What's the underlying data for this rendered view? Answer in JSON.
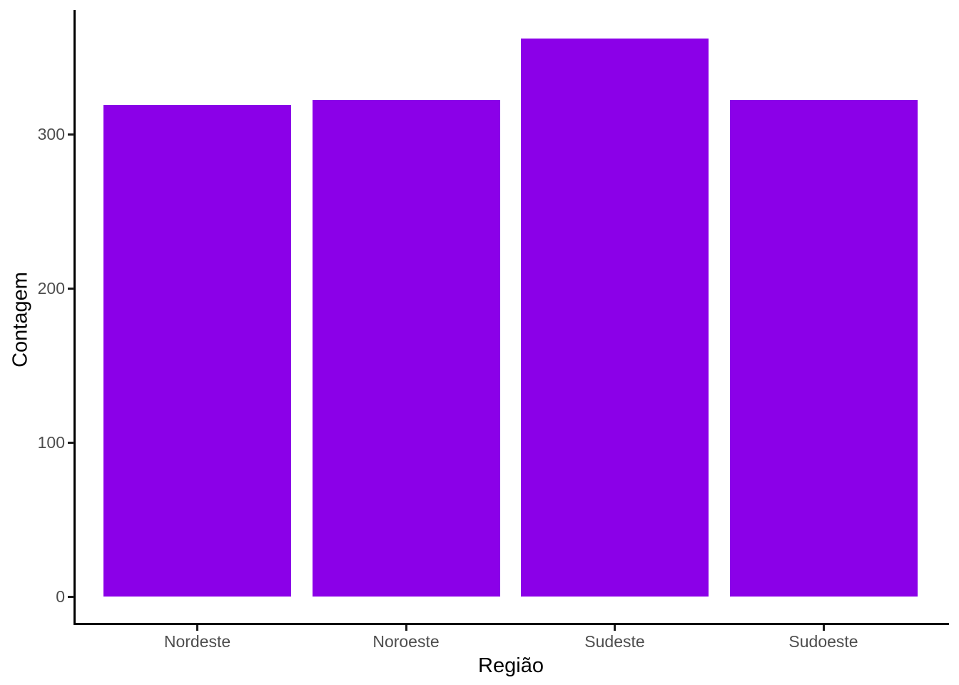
{
  "chart_data": {
    "type": "bar",
    "categories": [
      "Nordeste",
      "Noroeste",
      "Sudeste",
      "Sudoeste"
    ],
    "values": [
      319,
      322,
      362,
      322
    ],
    "title": "",
    "xlabel": "Região",
    "ylabel": "Contagem",
    "yticks": [
      0,
      100,
      200,
      300
    ],
    "ylim": [
      0,
      380
    ],
    "grid": false,
    "legend_position": "none",
    "bar_color": "#8b00e8",
    "axis_line_color": "#000000",
    "tick_label_color": "#4d4d4d",
    "axis_title_color": "#000000",
    "background_color": "#ffffff"
  }
}
